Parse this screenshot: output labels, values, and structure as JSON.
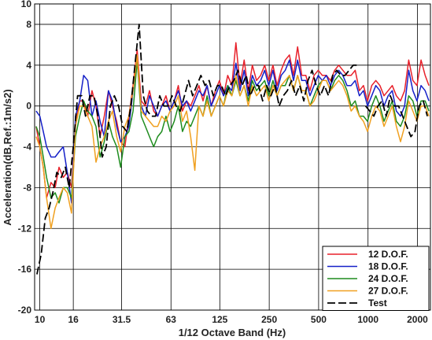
{
  "chart_data": {
    "type": "line",
    "xlabel": "1/12 Octave Band (Hz)",
    "ylabel": "Acceleration(dB,Ref.:1m/s2)",
    "xscale": "log",
    "xlim": [
      9.3,
      2400
    ],
    "ylim": [
      -20,
      10
    ],
    "x_ticks": [
      10,
      16,
      31.5,
      63,
      125,
      250,
      500,
      1000,
      2000
    ],
    "x_tick_labels": [
      "10",
      "16",
      "31.5",
      "63",
      "125",
      "250",
      "500",
      "1000",
      "2000"
    ],
    "y_ticks": [
      10,
      8,
      4,
      0,
      -4,
      -8,
      -12,
      -16,
      -20
    ],
    "y_tick_labels": [
      "10",
      "8",
      "4",
      "0",
      "-4",
      "-8",
      "-12",
      "-16",
      "-20"
    ],
    "grid": true,
    "legend_position": "bottom-right",
    "series": [
      {
        "name": "12 D.O.F.",
        "color": "#e8202a",
        "dash": "solid",
        "x": [
          9.5,
          10,
          10.5,
          11,
          11.7,
          12.4,
          13.1,
          13.9,
          14.7,
          15.6,
          16.5,
          17.5,
          18.5,
          19.6,
          20.8,
          22,
          23.3,
          24.7,
          26.2,
          27.7,
          29.4,
          31.1,
          33,
          34.9,
          37,
          39.2,
          41.5,
          44,
          46.6,
          49.4,
          52.3,
          55.4,
          58.7,
          62.2,
          65.9,
          69.8,
          74,
          78.4,
          83,
          88,
          93.2,
          98.7,
          104.6,
          110.8,
          117.4,
          124.4,
          131.8,
          139.6,
          147.9,
          156.7,
          166,
          175.9,
          186.3,
          197.4,
          209.1,
          221.5,
          234.7,
          248.6,
          263.4,
          279,
          295.6,
          313.2,
          331.8,
          351.5,
          372.4,
          394.5,
          418,
          442.8,
          469.1,
          497,
          526.5,
          557.8,
          591,
          626.1,
          663.3,
          702.7,
          744.5,
          788.7,
          835.6,
          885.3,
          937.9,
          993.6,
          1052.7,
          1115.2,
          1181.5,
          1251.8,
          1326.2,
          1405,
          1488.5,
          1577,
          1670.8,
          1770.1,
          1875.3,
          1986.8,
          2104.9,
          2230,
          2350
        ],
        "y": [
          -2,
          -4,
          -6,
          -9,
          -7.5,
          -8,
          -6,
          -7,
          -6.5,
          -8,
          -2,
          0.5,
          0.5,
          -1,
          1.5,
          0,
          -3,
          -1,
          1.5,
          0,
          -1.5,
          -3.5,
          -4,
          -1,
          2,
          5.5,
          0.5,
          0,
          1.5,
          -0.5,
          -1,
          0,
          1,
          -0.5,
          0.5,
          2,
          -0.5,
          0.5,
          0,
          1,
          2,
          0.5,
          2,
          0,
          1.5,
          2.5,
          1,
          3,
          2,
          6.2,
          2,
          4.5,
          1.5,
          4,
          2.5,
          3,
          4,
          2.5,
          4,
          2,
          3.5,
          4.5,
          5,
          3,
          5.8,
          3,
          3,
          1.5,
          3,
          3.5,
          3,
          3,
          2.5,
          3.5,
          4,
          3.5,
          3,
          3,
          3.5,
          1.5,
          2,
          0.5,
          2,
          2.5,
          2,
          1,
          1.5,
          2,
          1,
          0.5,
          1.5,
          4.5,
          2.5,
          2,
          4.5,
          3,
          2
        ]
      },
      {
        "name": "18 D.O.F.",
        "color": "#1520c8",
        "dash": "solid",
        "x": [
          9.5,
          10,
          10.5,
          11,
          11.7,
          12.4,
          13.1,
          13.9,
          14.7,
          15.6,
          16.5,
          17.5,
          18.5,
          19.6,
          20.8,
          22,
          23.3,
          24.7,
          26.2,
          27.7,
          29.4,
          31.1,
          33,
          34.9,
          37,
          39.2,
          41.5,
          44,
          46.6,
          49.4,
          52.3,
          55.4,
          58.7,
          62.2,
          65.9,
          69.8,
          74,
          78.4,
          83,
          88,
          93.2,
          98.7,
          104.6,
          110.8,
          117.4,
          124.4,
          131.8,
          139.6,
          147.9,
          156.7,
          166,
          175.9,
          186.3,
          197.4,
          209.1,
          221.5,
          234.7,
          248.6,
          263.4,
          279,
          295.6,
          313.2,
          331.8,
          351.5,
          372.4,
          394.5,
          418,
          442.8,
          469.1,
          497,
          526.5,
          557.8,
          591,
          626.1,
          663.3,
          702.7,
          744.5,
          788.7,
          835.6,
          885.3,
          937.9,
          993.6,
          1052.7,
          1115.2,
          1181.5,
          1251.8,
          1326.2,
          1405,
          1488.5,
          1577,
          1670.8,
          1770.1,
          1875.3,
          1986.8,
          2104.9,
          2230,
          2350
        ],
        "y": [
          -0.5,
          -1,
          -2.5,
          -4,
          -5,
          -5,
          -4.5,
          -4,
          -6.5,
          -9.5,
          -1,
          0.5,
          3,
          2.5,
          -1,
          0.5,
          -1.5,
          -3,
          1.5,
          0.5,
          -2,
          -3.5,
          -3,
          -2,
          1.5,
          4.5,
          0,
          -1,
          1,
          0,
          -1,
          0,
          0.5,
          -0.5,
          0.5,
          1.5,
          0,
          0.5,
          -0.5,
          0.5,
          1.5,
          1,
          2,
          0,
          1,
          2,
          1,
          2,
          1.5,
          4.2,
          1.5,
          3.5,
          1,
          3,
          2,
          2.5,
          3.5,
          2,
          3.5,
          1.5,
          3,
          3.5,
          4.5,
          2.5,
          4.5,
          2.5,
          2.5,
          1,
          2,
          3,
          2.5,
          3,
          2,
          3,
          3.5,
          3,
          2,
          2,
          2.5,
          1,
          1.5,
          0,
          1,
          2,
          1.5,
          0,
          1,
          1.5,
          -0.5,
          -1,
          0,
          3.5,
          1.5,
          0.5,
          2,
          1.5,
          0.5
        ]
      },
      {
        "name": "24 D.O.F.",
        "color": "#1e8c1e",
        "dash": "solid",
        "x": [
          9.5,
          10,
          10.5,
          11,
          11.7,
          12.4,
          13.1,
          13.9,
          14.7,
          15.6,
          16.5,
          17.5,
          18.5,
          19.6,
          20.8,
          22,
          23.3,
          24.7,
          26.2,
          27.7,
          29.4,
          31.1,
          33,
          34.9,
          37,
          39.2,
          41.5,
          44,
          46.6,
          49.4,
          52.3,
          55.4,
          58.7,
          62.2,
          65.9,
          69.8,
          74,
          78.4,
          83,
          88,
          93.2,
          98.7,
          104.6,
          110.8,
          117.4,
          124.4,
          131.8,
          139.6,
          147.9,
          156.7,
          166,
          175.9,
          186.3,
          197.4,
          209.1,
          221.5,
          234.7,
          248.6,
          263.4,
          279,
          295.6,
          313.2,
          331.8,
          351.5,
          372.4,
          394.5,
          418,
          442.8,
          469.1,
          497,
          526.5,
          557.8,
          591,
          626.1,
          663.3,
          702.7,
          744.5,
          788.7,
          835.6,
          885.3,
          937.9,
          993.6,
          1052.7,
          1115.2,
          1181.5,
          1251.8,
          1326.2,
          1405,
          1488.5,
          1577,
          1670.8,
          1770.1,
          1875.3,
          1986.8,
          2104.9,
          2230,
          2350
        ],
        "y": [
          -2,
          -3,
          -5,
          -7,
          -9,
          -8.5,
          -9.5,
          -8,
          -8,
          -9,
          -3,
          -1,
          0.5,
          -0.5,
          -1,
          -2,
          -5,
          -3.5,
          -1.5,
          -3,
          -4,
          -6,
          -3,
          -2.5,
          -0.5,
          4.5,
          -1,
          -2,
          -3,
          -4,
          -3,
          -2.5,
          -1,
          -2.5,
          -1.5,
          0,
          -2.5,
          -1.5,
          -2,
          -1,
          0,
          -1,
          1,
          -1,
          0,
          1,
          0,
          2,
          1,
          2.5,
          1,
          2,
          0.5,
          2.5,
          1.5,
          2,
          2.5,
          1,
          2.5,
          1,
          2,
          2,
          3,
          1.5,
          3,
          1.5,
          1.5,
          0,
          1,
          2,
          2.5,
          2.5,
          1.5,
          2.5,
          3,
          2.5,
          1.5,
          0,
          0.5,
          -1,
          -1,
          -1.5,
          0,
          1,
          0,
          -1.5,
          -0.5,
          0.5,
          -1.5,
          -2,
          -1,
          1,
          0.5,
          -1,
          0.5,
          0.5,
          -0.5
        ]
      },
      {
        "name": "27 D.O.F.",
        "color": "#f0a020",
        "dash": "solid",
        "x": [
          9.5,
          10,
          10.5,
          11,
          11.7,
          12.4,
          13.1,
          13.9,
          14.7,
          15.6,
          16.5,
          17.5,
          18.5,
          19.6,
          20.8,
          22,
          23.3,
          24.7,
          26.2,
          27.7,
          29.4,
          31.1,
          33,
          34.9,
          37,
          39.2,
          41.5,
          44,
          46.6,
          49.4,
          52.3,
          55.4,
          58.7,
          62.2,
          65.9,
          69.8,
          74,
          78.4,
          83,
          88,
          93.2,
          98.7,
          104.6,
          110.8,
          117.4,
          124.4,
          131.8,
          139.6,
          147.9,
          156.7,
          166,
          175.9,
          186.3,
          197.4,
          209.1,
          221.5,
          234.7,
          248.6,
          263.4,
          279,
          295.6,
          313.2,
          331.8,
          351.5,
          372.4,
          394.5,
          418,
          442.8,
          469.1,
          497,
          526.5,
          557.8,
          591,
          626.1,
          663.3,
          702.7,
          744.5,
          788.7,
          835.6,
          885.3,
          937.9,
          993.6,
          1052.7,
          1115.2,
          1181.5,
          1251.8,
          1326.2,
          1405,
          1488.5,
          1577,
          1670.8,
          1770.1,
          1875.3,
          1986.8,
          2104.9,
          2230,
          2350
        ],
        "y": [
          -3,
          -4,
          -6,
          -9,
          -12,
          -10,
          -9,
          -8,
          -8.5,
          -10.5,
          -2,
          0,
          0,
          -1,
          -2,
          -5.5,
          -4,
          -3,
          -1.5,
          -0.5,
          -3,
          -4.5,
          -2,
          -1,
          1.5,
          5,
          -0.5,
          -1,
          -1.5,
          -2,
          -2,
          -1,
          -1.5,
          -0.5,
          0,
          1,
          -1.5,
          -0.5,
          -3,
          -6.3,
          0,
          -1,
          0.5,
          -1,
          0,
          1,
          0,
          1.5,
          1,
          3,
          1,
          2,
          0,
          2,
          1,
          1.5,
          2,
          0.5,
          2,
          1,
          2,
          2.5,
          3,
          1.5,
          3,
          1.5,
          1.5,
          0,
          0.5,
          1.5,
          2.5,
          2.5,
          1.5,
          2,
          2.5,
          2,
          1,
          -0.5,
          0,
          -1,
          -1.5,
          -2.5,
          -1,
          0,
          -0.5,
          -2,
          -1,
          0,
          -2,
          -3.5,
          -2,
          0.5,
          -0.5,
          -1.5,
          0,
          0,
          -1
        ]
      },
      {
        "name": "Test",
        "color": "#000000",
        "dash": "dashed",
        "x": [
          9.6,
          10.2,
          10.8,
          11.4,
          12,
          12.7,
          13.5,
          14.3,
          15.1,
          16,
          17,
          18,
          19,
          20.2,
          21.4,
          22.6,
          24,
          25.4,
          26.9,
          28.5,
          30.2,
          32,
          33.9,
          35.9,
          38,
          40.3,
          42.7,
          45.2,
          47.9,
          50.8,
          53.8,
          57,
          60.4,
          64,
          67.8,
          71.8,
          76.1,
          80.6,
          85.4,
          90.5,
          95.9,
          101.6,
          107.6,
          114,
          120.8,
          128,
          135.6,
          143.7,
          152.2,
          161.3,
          170.9,
          181,
          191.8,
          203.2,
          215.3,
          228.1,
          241.6,
          256,
          271.2,
          287.4,
          304.4,
          322.5,
          341.7,
          362,
          383.6,
          406.4,
          430.5,
          456.1,
          483.2,
          512,
          542.4,
          574.7,
          608.9,
          645.1,
          683.4,
          724.1,
          767.1,
          812.7,
          861,
          912.2,
          966.5,
          1024,
          1084.9,
          1149.4,
          1217.7,
          1290.1,
          1366.8,
          1448.1,
          1534.2,
          1625.4,
          1722,
          1824.4,
          1932.9,
          2047.8,
          2169.5,
          2298.5
        ],
        "y": [
          -16.5,
          -14.5,
          -11,
          -10,
          -8.5,
          -6.5,
          -7,
          -6,
          -8,
          -4,
          1,
          1,
          -1,
          1,
          1,
          -1,
          -5,
          -4,
          0,
          1,
          0,
          -2,
          -2.5,
          0,
          4,
          8,
          1,
          -0.5,
          -1,
          -1,
          1,
          0,
          0,
          1,
          0,
          -0.5,
          1,
          2.5,
          1,
          2,
          3,
          2,
          2.5,
          1,
          2,
          2,
          1,
          2,
          2.5,
          3.5,
          2,
          3,
          1,
          2,
          2,
          0.5,
          2,
          1,
          2,
          0,
          1,
          1.5,
          2.5,
          1,
          2,
          0.5,
          2.5,
          3.5,
          2,
          1,
          2,
          1,
          3,
          3.5,
          3,
          3,
          3.5,
          4,
          4,
          null,
          0,
          -0.5,
          -1,
          0,
          0.5,
          -1,
          1,
          0,
          0,
          -1,
          -2,
          -3,
          -2.5,
          0,
          0.5,
          -1
        ]
      }
    ]
  }
}
